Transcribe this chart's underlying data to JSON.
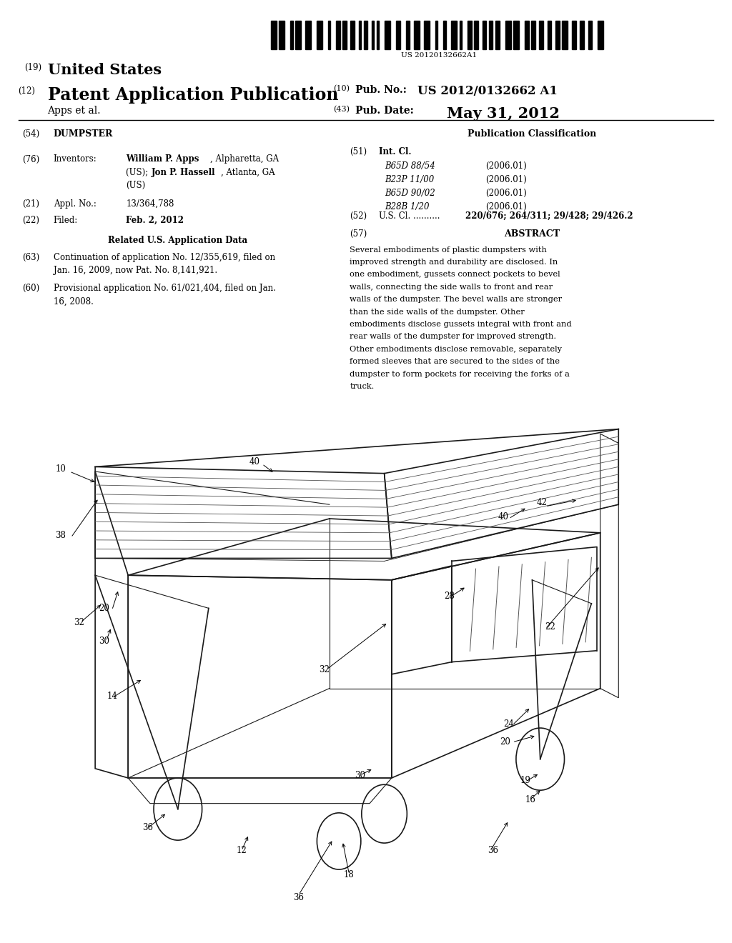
{
  "bg_color": "#ffffff",
  "barcode_text": "US 20120132662A1",
  "header_line1_num": "(19)",
  "header_line1_text": "United States",
  "header_line2_num": "(12)",
  "header_line2_text": "Patent Application Publication",
  "header_right1_num": "(10)",
  "header_right1_label": "Pub. No.:",
  "header_right1_val": "US 2012/0132662 A1",
  "header_right2_num": "(43)",
  "header_right2_label": "Pub. Date:",
  "header_right2_val": "May 31, 2012",
  "header_applicant": "Apps et al.",
  "section_title_num": "(54)",
  "section_title_text": "DUMPSTER",
  "pub_class_title": "Publication Classification",
  "int_cl_num": "(51)",
  "int_cl_label": "Int. Cl.",
  "int_cl_entries": [
    [
      "B65D 88/54",
      "(2006.01)"
    ],
    [
      "B23P 11/00",
      "(2006.01)"
    ],
    [
      "B65D 90/02",
      "(2006.01)"
    ],
    [
      "B28B 1/20",
      "(2006.01)"
    ]
  ],
  "us_cl_num": "(52)",
  "us_cl_label": "U.S. Cl.",
  "us_cl_dots": " ..........",
  "us_cl_val": "220/676; 264/311; 29/428; 29/426.2",
  "abstract_num": "(57)",
  "abstract_title": "ABSTRACT",
  "abstract_text": "Several embodiments of plastic dumpsters with improved strength and durability are disclosed. In one embodiment, gussets connect pockets to bevel walls, connecting the side walls to front and rear walls of the dumpster. The bevel walls are stronger than the side walls of the dumpster. Other embodiments disclose gussets integral with front and rear walls of the dumpster for improved strength. Other embodiments disclose removable, separately formed sleeves that are secured to the sides of the dumpster to form pockets for receiving the forks of a truck.",
  "inventors_num": "(76)",
  "inventors_label": "Inventors:",
  "appl_num_num": "(21)",
  "appl_num_label": "Appl. No.:",
  "appl_num_val": "13/364,788",
  "filed_num": "(22)",
  "filed_label": "Filed:",
  "filed_val": "Feb. 2, 2012",
  "related_title": "Related U.S. Application Data",
  "cont_num": "(63)",
  "cont_line1": "Continuation of application No. 12/355,619, filed on",
  "cont_line2": "Jan. 16, 2009, now Pat. No. 8,141,921.",
  "prov_num": "(60)",
  "prov_line1": "Provisional application No. 61/021,404, filed on Jan.",
  "prov_line2": "16, 2008.",
  "diagram_line_color": "#1a1a1a",
  "diagram_gray": "#555555",
  "diagram_lw": 1.2,
  "diagram_lw2": 0.8,
  "diagram_lw3": 0.6
}
